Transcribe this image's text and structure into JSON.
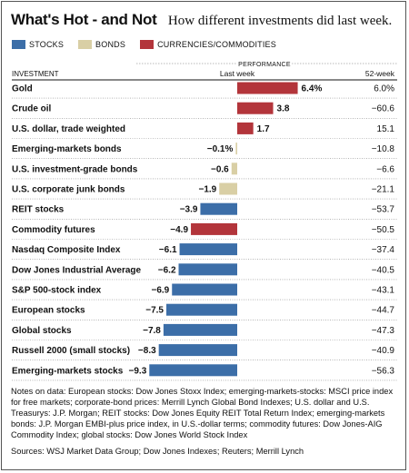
{
  "title": "What's Hot - and Not",
  "subtitle": "How different investments did last week.",
  "colors": {
    "stocks": "#3c6ea8",
    "bonds": "#d9cfa5",
    "currencies_commodities": "#b3353b"
  },
  "legend": [
    {
      "key": "stocks",
      "label": "STOCKS"
    },
    {
      "key": "bonds",
      "label": "BONDS"
    },
    {
      "key": "currencies_commodities",
      "label": "CURRENCIES/COMMODITIES"
    }
  ],
  "headers": {
    "investment": "INVESTMENT",
    "performance": "PERFORMANCE",
    "last_week": "Last week",
    "week52": "52-week"
  },
  "chart_data": {
    "type": "bar",
    "orientation": "horizontal",
    "title": "What's Hot - and Not",
    "categories": [
      "Gold",
      "Crude oil",
      "U.S. dollar, trade weighted",
      "Emerging-markets bonds",
      "U.S. investment-grade bonds",
      "U.S. corporate junk bonds",
      "REIT stocks",
      "Commodity futures",
      "Nasdaq Composite Index",
      "Dow Jones Industrial Average",
      "S&P 500-stock index",
      "European stocks",
      "Global stocks",
      "Russell 2000 (small stocks)",
      "Emerging-markets stocks"
    ],
    "groups": [
      "currencies_commodities",
      "currencies_commodities",
      "currencies_commodities",
      "bonds",
      "bonds",
      "bonds",
      "stocks",
      "currencies_commodities",
      "stocks",
      "stocks",
      "stocks",
      "stocks",
      "stocks",
      "stocks",
      "stocks"
    ],
    "last_week_labels": [
      "6.4%",
      "3.8",
      "1.7",
      "−0.1%",
      "−0.6",
      "−1.9",
      "−3.9",
      "−4.9",
      "−6.1",
      "−6.2",
      "−6.9",
      "−7.5",
      "−7.8",
      "−8.3",
      "−9.3"
    ],
    "last_week_values": [
      6.4,
      3.8,
      1.7,
      -0.1,
      -0.6,
      -1.9,
      -3.9,
      -4.9,
      -6.1,
      -6.2,
      -6.9,
      -7.5,
      -7.8,
      -8.3,
      -9.3
    ],
    "week52_labels": [
      "6.0%",
      "−60.6",
      "15.1",
      "−10.8",
      "−6.6",
      "−21.1",
      "−53.7",
      "−50.5",
      "−37.4",
      "−40.5",
      "−43.1",
      "−44.7",
      "−47.3",
      "−40.9",
      "−56.3"
    ],
    "week52_values": [
      6.0,
      -60.6,
      15.1,
      -10.8,
      -6.6,
      -21.1,
      -53.7,
      -50.5,
      -37.4,
      -40.5,
      -43.1,
      -44.7,
      -47.3,
      -40.9,
      -56.3
    ]
  },
  "notes": "Notes on data: European stocks: Dow Jones Stoxx Index; emerging-markets-stocks: MSCI price index for free markets; corporate-bond prices: Merrill Lynch Global Bond Indexes; U.S. dollar and U.S. Treasurys: J.P. Morgan; REIT stocks: Dow Jones Equity REIT Total Return Index; emerging-markets bonds: J.P. Morgan EMBI-plus price index, in U.S.-dollar terms; commodity futures: Dow Jones-AIG Commodity Index; global stocks: Dow Jones World Stock Index",
  "sources": "Sources: WSJ Market Data Group; Dow Jones Indexes; Reuters; Merrill Lynch"
}
